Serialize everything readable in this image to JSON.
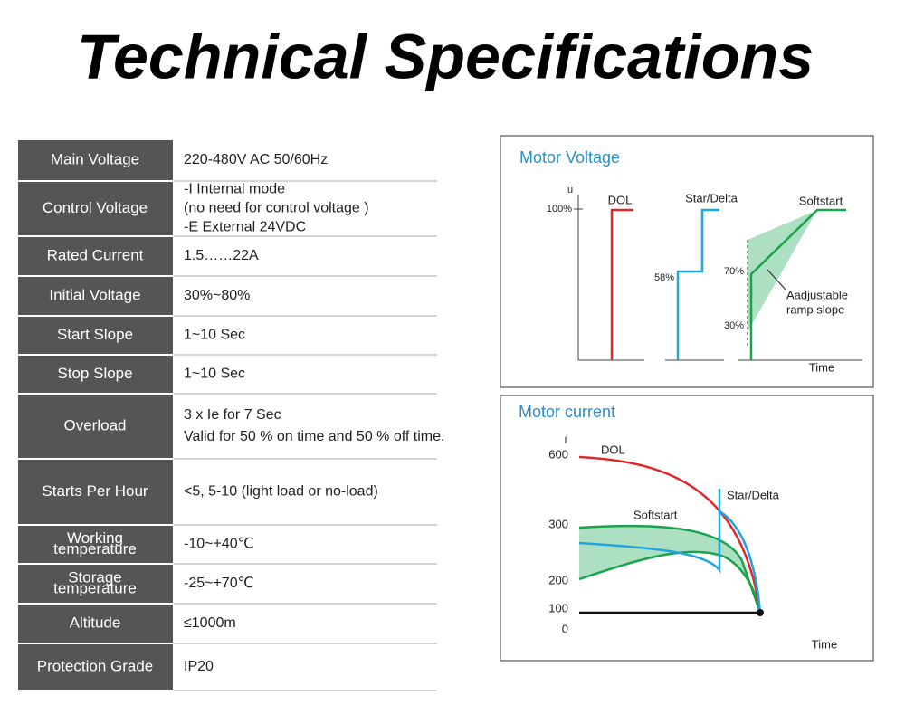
{
  "title": "Technical Specifications",
  "table": {
    "rows": [
      [
        "Main Voltage",
        "220-480V AC 50/60Hz"
      ],
      [
        "Control Voltage",
        [
          "-I Internal mode",
          "(no need for control voltage )",
          "-E External 24VDC"
        ]
      ],
      [
        "Rated Current",
        "1.5……22A"
      ],
      [
        "Initial Voltage",
        "30%~80%"
      ],
      [
        "Start Slope",
        "1~10 Sec"
      ],
      [
        "Stop Slope",
        "1~10 Sec"
      ],
      [
        "Overload",
        [
          "3 x Ie for 7 Sec",
          "Valid for 50 % on time and 50 % off time."
        ]
      ],
      [
        "Starts Per Hour",
        "<5, 5-10  (light load or no-load)"
      ],
      [
        [
          "Working",
          "temperature"
        ],
        "-10~+40℃"
      ],
      [
        [
          "Storage",
          "temperature"
        ],
        "-25~+70℃"
      ],
      [
        "Altitude",
        "≤1000m"
      ],
      [
        "Protection Grade",
        "IP20"
      ]
    ]
  },
  "voltage_diagram": {
    "title": "Motor Voltage",
    "y_axis": "u",
    "x_axis": "Time",
    "labels": [
      "DOL",
      "Star/Delta",
      "Softstart"
    ],
    "levels": [
      "100%",
      "58%",
      "70%",
      "30%"
    ],
    "note": [
      "Aadjustable",
      "ramp slope"
    ]
  },
  "current_diagram": {
    "title": "Motor current",
    "y_axis": "I",
    "x_axis": "Time",
    "labels": [
      "DOL",
      "Star/Delta",
      "Softstart"
    ],
    "levels": [
      "600",
      "300",
      "200",
      "100",
      "0"
    ]
  }
}
